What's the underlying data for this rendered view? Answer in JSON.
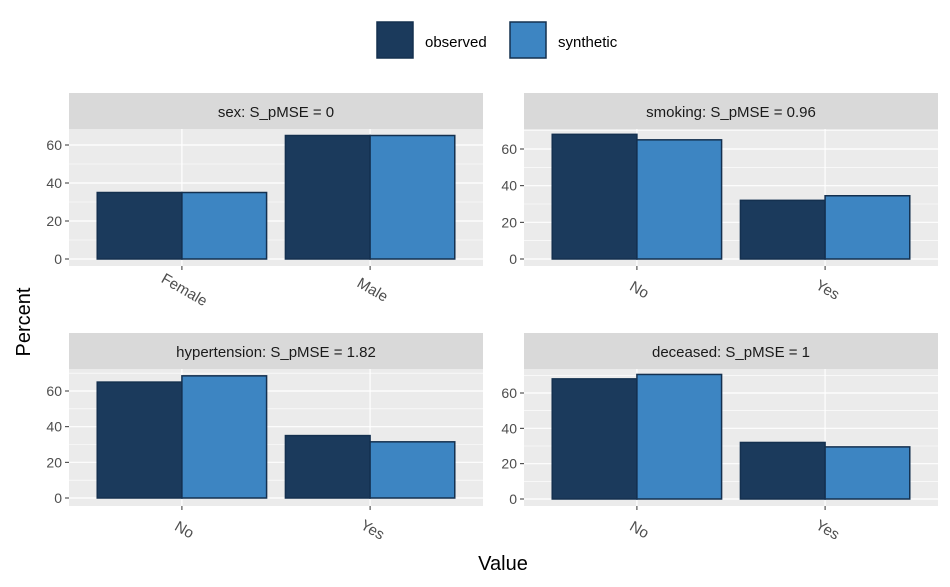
{
  "colors": {
    "observed": "#1b3a5c",
    "synthetic": "#3d85c2",
    "bar_outline": "#14304f",
    "panel_bg": "#ebebeb",
    "strip_bg": "#d9d9d9",
    "grid": "#ffffff"
  },
  "chart_data": {
    "type": "bar",
    "xlabel": "Value",
    "ylabel": "Percent",
    "legend": {
      "placement": "top",
      "entries": [
        "observed",
        "synthetic"
      ]
    },
    "grid": true,
    "panels": [
      {
        "strip": "sex: S_pMSE = 0",
        "categories": [
          "Female",
          "Male"
        ],
        "ylim": [
          0,
          70
        ],
        "yticks": [
          0,
          20,
          40,
          60
        ],
        "series": [
          {
            "name": "observed",
            "values": [
              35,
              65
            ]
          },
          {
            "name": "synthetic",
            "values": [
              35,
              65
            ]
          }
        ]
      },
      {
        "strip": "smoking: S_pMSE = 0.96",
        "categories": [
          "No",
          "Yes"
        ],
        "ylim": [
          0,
          70
        ],
        "yticks": [
          0,
          20,
          40,
          60
        ],
        "series": [
          {
            "name": "observed",
            "values": [
              68,
              32
            ]
          },
          {
            "name": "synthetic",
            "values": [
              65,
              34.5
            ]
          }
        ]
      },
      {
        "strip": "hypertension: S_pMSE = 1.82",
        "categories": [
          "No",
          "Yes"
        ],
        "ylim": [
          0,
          70
        ],
        "yticks": [
          0,
          20,
          40,
          60
        ],
        "series": [
          {
            "name": "observed",
            "values": [
              65,
              35
            ]
          },
          {
            "name": "synthetic",
            "values": [
              68.5,
              31.5
            ]
          }
        ]
      },
      {
        "strip": "deceased: S_pMSE = 1",
        "categories": [
          "No",
          "Yes"
        ],
        "ylim": [
          0,
          70
        ],
        "yticks": [
          0,
          20,
          40,
          60
        ],
        "series": [
          {
            "name": "observed",
            "values": [
              68,
              32
            ]
          },
          {
            "name": "synthetic",
            "values": [
              70.5,
              29.5
            ]
          }
        ]
      }
    ]
  }
}
